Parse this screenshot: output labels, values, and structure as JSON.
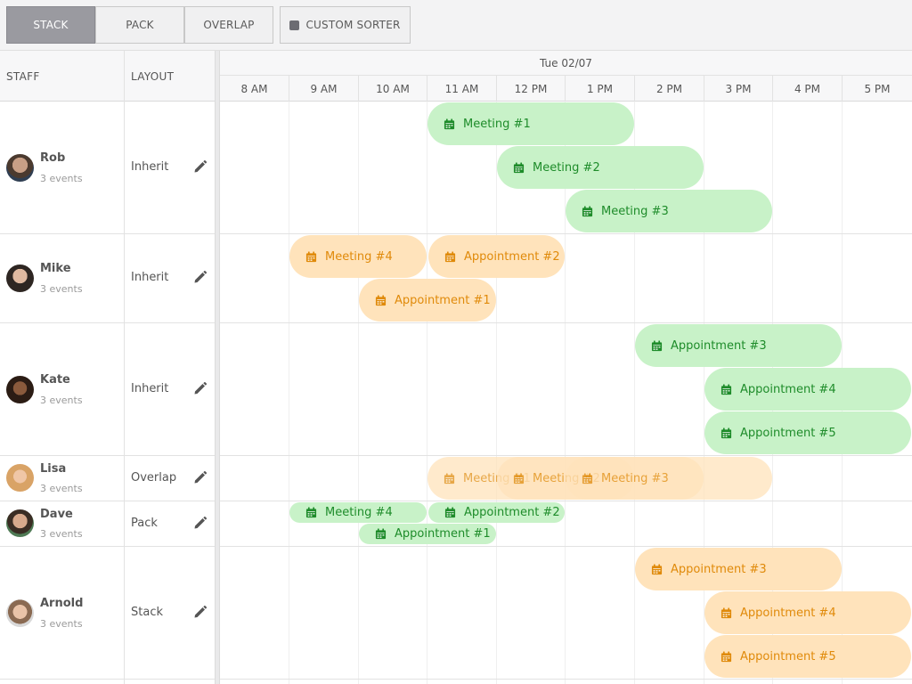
{
  "toolbar": {
    "buttons": [
      {
        "label": "STACK",
        "active": true
      },
      {
        "label": "PACK",
        "active": false
      },
      {
        "label": "OVERLAP",
        "active": false
      }
    ],
    "custom_sorter_label": "CUSTOM SORTER",
    "custom_sorter_icon": "checkbox-icon"
  },
  "columns": {
    "staff": "STAFF",
    "layout": "LAYOUT"
  },
  "timeline": {
    "date": "Tue 02/07",
    "hours": [
      "8 AM",
      "9 AM",
      "10 AM",
      "11 AM",
      "12 PM",
      "1 PM",
      "2 PM",
      "3 PM",
      "4 PM",
      "5 PM"
    ]
  },
  "colors": {
    "green_bg": "#c8f2c8",
    "green_text": "#1e8c2a",
    "orange_bg": "#ffe3bb",
    "orange_text": "#e08a0a",
    "active_button": "#9a9aa0"
  },
  "resources": [
    {
      "name": "Rob",
      "events_label": "3 events",
      "layout": "Inherit",
      "edit_icon": "pencil-icon"
    },
    {
      "name": "Mike",
      "events_label": "3 events",
      "layout": "Inherit",
      "edit_icon": "pencil-icon"
    },
    {
      "name": "Kate",
      "events_label": "3 events",
      "layout": "Inherit",
      "edit_icon": "pencil-icon"
    },
    {
      "name": "Lisa",
      "events_label": "3 events",
      "layout": "Overlap",
      "edit_icon": "pencil-icon"
    },
    {
      "name": "Dave",
      "events_label": "3 events",
      "layout": "Pack",
      "edit_icon": "pencil-icon"
    },
    {
      "name": "Arnold",
      "events_label": "3 events",
      "layout": "Stack",
      "edit_icon": "pencil-icon"
    }
  ],
  "events": [
    {
      "name": "Meeting #1",
      "resource": "Rob",
      "start": "11:00",
      "end": "2:00 PM",
      "color": "green"
    },
    {
      "name": "Meeting #2",
      "resource": "Rob",
      "start": "12:00 PM",
      "end": "3:00 PM",
      "color": "green"
    },
    {
      "name": "Meeting #3",
      "resource": "Rob",
      "start": "1:00 PM",
      "end": "4:00 PM",
      "color": "green"
    },
    {
      "name": "Meeting #4",
      "resource": "Mike",
      "start": "9:00 AM",
      "end": "11:00 AM",
      "color": "orange"
    },
    {
      "name": "Appointment #2",
      "resource": "Mike",
      "start": "11:00 AM",
      "end": "1:00 PM",
      "color": "orange"
    },
    {
      "name": "Appointment #1",
      "resource": "Mike",
      "start": "10:00 AM",
      "end": "12:00 PM",
      "color": "orange"
    },
    {
      "name": "Appointment #3",
      "resource": "Kate",
      "start": "2:00 PM",
      "end": "5:00 PM",
      "color": "green"
    },
    {
      "name": "Appointment #4",
      "resource": "Kate",
      "start": "3:00 PM",
      "end": "6:00 PM",
      "color": "green"
    },
    {
      "name": "Appointment #5",
      "resource": "Kate",
      "start": "3:00 PM",
      "end": "6:00 PM",
      "color": "green"
    },
    {
      "name": "Meeting #1",
      "resource": "Lisa",
      "start": "11:00 AM",
      "end": "2:00 PM",
      "color": "orange"
    },
    {
      "name": "Meeting #2",
      "resource": "Lisa",
      "start": "12:00 PM",
      "end": "3:00 PM",
      "color": "orange"
    },
    {
      "name": "Meeting #3",
      "resource": "Lisa",
      "start": "1:00 PM",
      "end": "4:00 PM",
      "color": "orange"
    },
    {
      "name": "Meeting #4",
      "resource": "Dave",
      "start": "9:00 AM",
      "end": "11:00 AM",
      "color": "green"
    },
    {
      "name": "Appointment #2",
      "resource": "Dave",
      "start": "11:00 AM",
      "end": "1:00 PM",
      "color": "green"
    },
    {
      "name": "Appointment #1",
      "resource": "Dave",
      "start": "10:00 AM",
      "end": "12:00 PM",
      "color": "green"
    },
    {
      "name": "Appointment #3",
      "resource": "Arnold",
      "start": "2:00 PM",
      "end": "5:00 PM",
      "color": "orange"
    },
    {
      "name": "Appointment #4",
      "resource": "Arnold",
      "start": "3:00 PM",
      "end": "6:00 PM",
      "color": "orange"
    },
    {
      "name": "Appointment #5",
      "resource": "Arnold",
      "start": "3:00 PM",
      "end": "6:00 PM",
      "color": "orange"
    }
  ]
}
